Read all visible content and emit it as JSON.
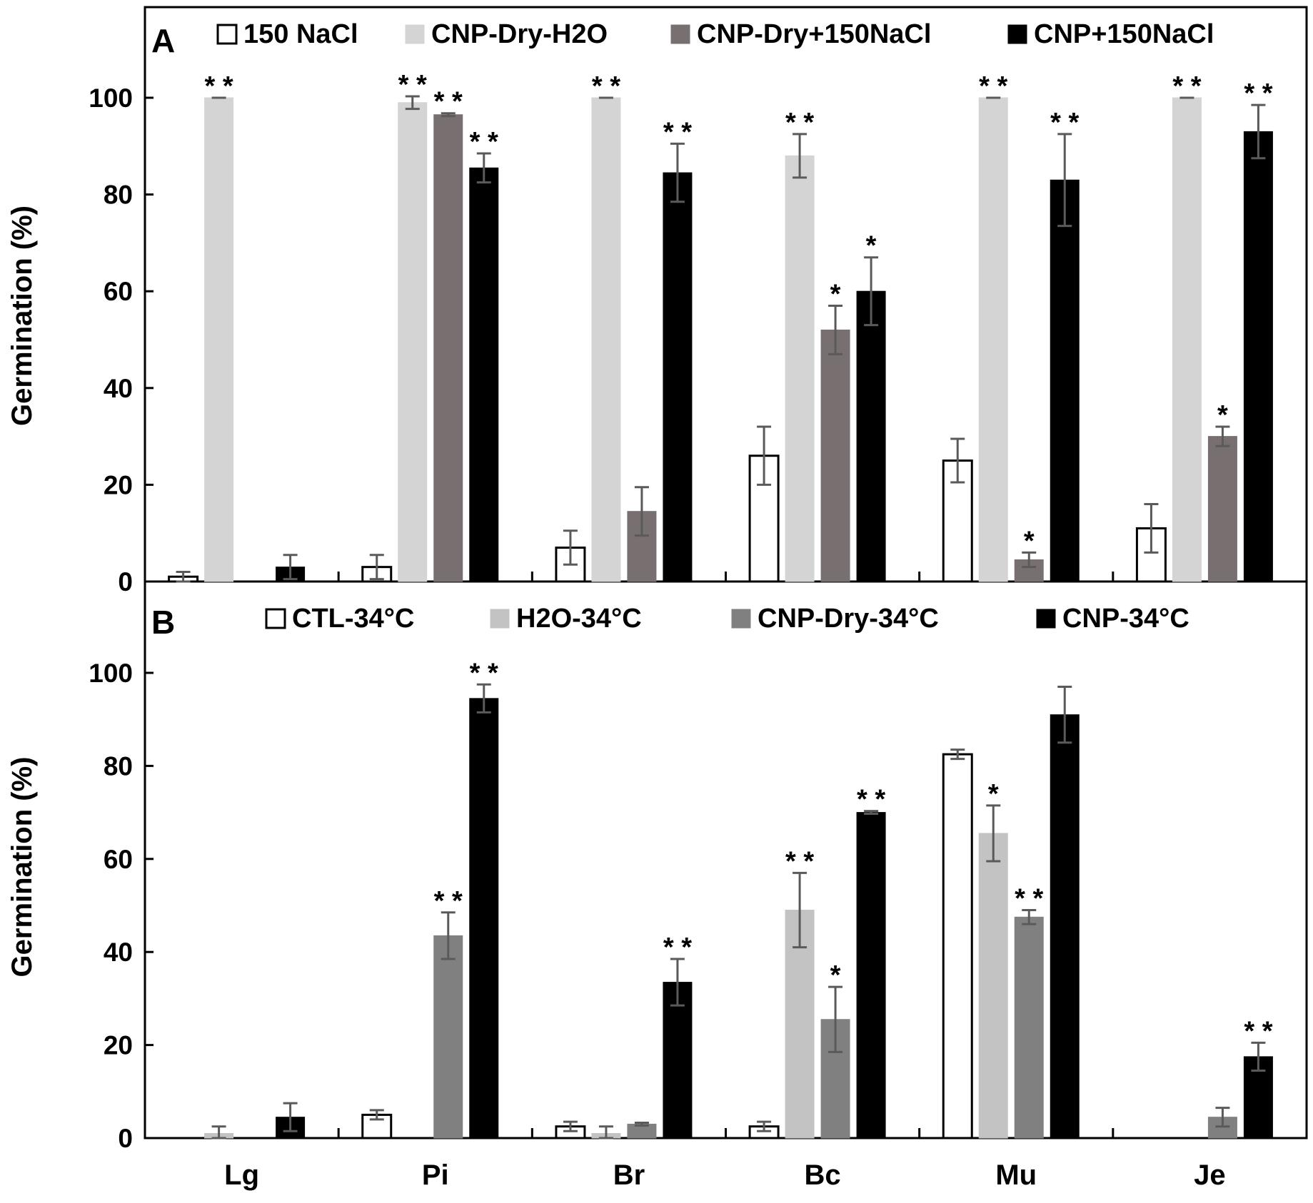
{
  "categories": [
    "Lg",
    "Pi",
    "Br",
    "Bc",
    "Mu",
    "Je"
  ],
  "y_ticks": [
    0,
    20,
    40,
    60,
    80,
    100
  ],
  "chart_data": [
    {
      "type": "bar",
      "panel": "A",
      "ylabel": "Germination (%)",
      "ylim": [
        0,
        100
      ],
      "y_ticks": [
        0,
        20,
        40,
        60,
        80,
        100
      ],
      "categories": [
        "Lg",
        "Pi",
        "Br",
        "Bc",
        "Mu",
        "Je"
      ],
      "legend_position": "top",
      "series": [
        {
          "name": "150 NaCl",
          "color": "#ffffff",
          "values": [
            1,
            3,
            7,
            26,
            25,
            11
          ],
          "errors": [
            1,
            2.5,
            3.5,
            6,
            4.5,
            5
          ],
          "sig": [
            "",
            "",
            "",
            "",
            "",
            ""
          ]
        },
        {
          "name": "CNP-Dry-H2O",
          "color": "#d4d4d4",
          "values": [
            100,
            99,
            100,
            88,
            100,
            100
          ],
          "errors": [
            0,
            1.3,
            0,
            4.5,
            0,
            0
          ],
          "sig": [
            "**",
            "**",
            "**",
            "**",
            "**",
            "**"
          ]
        },
        {
          "name": "CNP-Dry+150NaCl",
          "color": "#787070",
          "values": [
            0,
            96.5,
            14.5,
            52,
            4.5,
            30
          ],
          "errors": [
            0,
            0.3,
            5,
            5,
            1.5,
            2
          ],
          "sig": [
            "",
            "**",
            "",
            "*",
            "*",
            "*"
          ]
        },
        {
          "name": "CNP+150NaCl",
          "color": "#000000",
          "values": [
            3,
            85.5,
            84.5,
            60,
            83,
            93
          ],
          "errors": [
            2.5,
            3,
            6,
            7,
            9.5,
            5.5
          ],
          "sig": [
            "",
            "**",
            "**",
            "*",
            "**",
            "**"
          ]
        }
      ]
    },
    {
      "type": "bar",
      "panel": "B",
      "ylabel": "Germination (%)",
      "ylim": [
        0,
        100
      ],
      "y_ticks": [
        0,
        20,
        40,
        60,
        80,
        100
      ],
      "categories": [
        "Lg",
        "Pi",
        "Br",
        "Bc",
        "Mu",
        "Je"
      ],
      "legend_position": "top",
      "series": [
        {
          "name": "CTL-34°C",
          "color": "#ffffff",
          "values": [
            0,
            5,
            2.5,
            2.5,
            82.5,
            0
          ],
          "errors": [
            0,
            1,
            1,
            1,
            1,
            0
          ],
          "sig": [
            "",
            "",
            "",
            "",
            "",
            ""
          ]
        },
        {
          "name": "H2O-34°C",
          "color": "#c3c3c3",
          "values": [
            1,
            0,
            1,
            49,
            65.5,
            0
          ],
          "errors": [
            1.5,
            0,
            1.5,
            8,
            6,
            0
          ],
          "sig": [
            "",
            "",
            "",
            "**",
            "*",
            ""
          ]
        },
        {
          "name": "CNP-Dry-34°C",
          "color": "#808080",
          "values": [
            0,
            43.5,
            3,
            25.5,
            47.5,
            4.5
          ],
          "errors": [
            0,
            5,
            0.3,
            7,
            1.5,
            2
          ],
          "sig": [
            "",
            "**",
            "",
            "*",
            "**",
            ""
          ]
        },
        {
          "name": "CNP-34°C",
          "color": "#000000",
          "values": [
            4.5,
            94.5,
            33.5,
            70,
            91,
            17.5
          ],
          "errors": [
            3,
            3,
            5,
            0.3,
            6,
            3
          ],
          "sig": [
            "",
            "**",
            "**",
            "**",
            "",
            "**"
          ]
        }
      ]
    }
  ]
}
